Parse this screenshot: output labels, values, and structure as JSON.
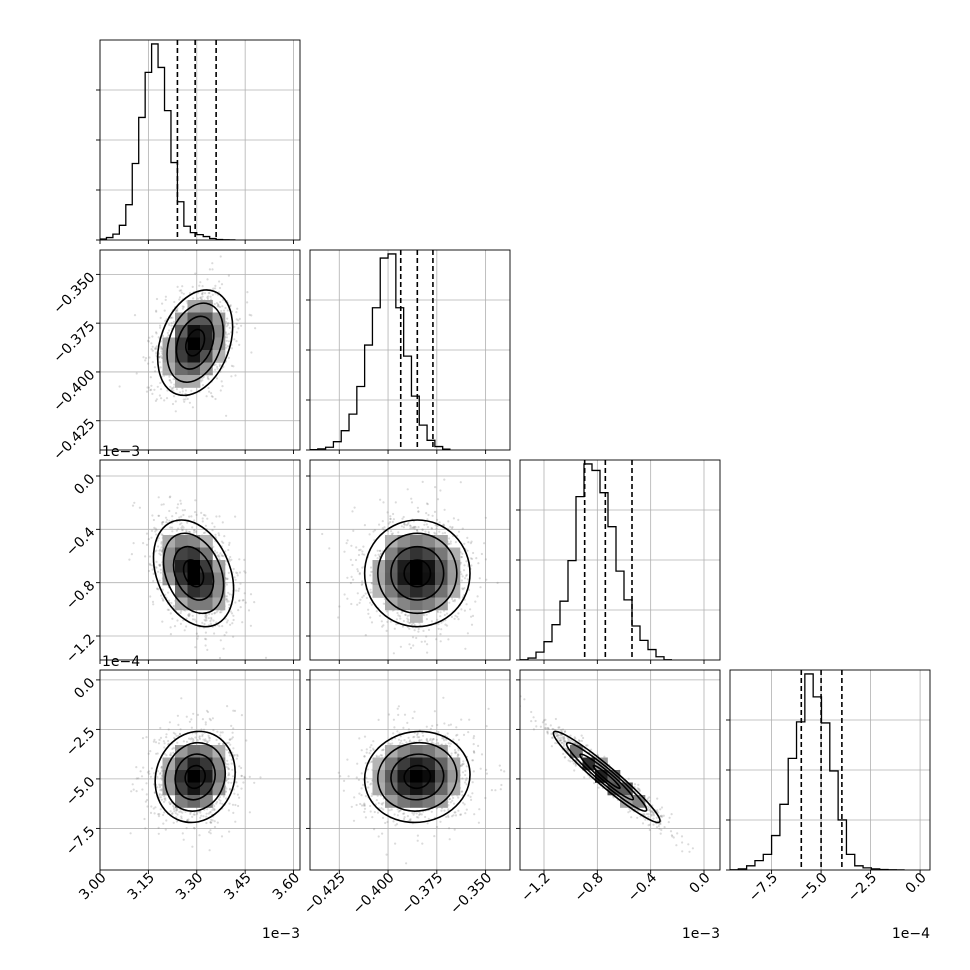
{
  "chart_data": {
    "type": "corner",
    "title": "",
    "parameters": [
      {
        "index": 0,
        "range": [
          3.0,
          3.62
        ],
        "ticks": [
          3.0,
          3.15,
          3.3,
          3.45,
          3.6
        ],
        "tick_labels": [
          "3.00",
          "3.15",
          "3.30",
          "3.45",
          "3.60"
        ],
        "offset_label": "1e−3",
        "quantiles": [
          3.24,
          3.295,
          3.36
        ]
      },
      {
        "index": 1,
        "range": [
          -0.44,
          -0.3375
        ],
        "ticks": [
          -0.425,
          -0.4,
          -0.375,
          -0.35
        ],
        "tick_labels": [
          "−0.425",
          "−0.400",
          "−0.375",
          "−0.350"
        ],
        "offset_label": "",
        "quantiles": [
          -0.3935,
          -0.385,
          -0.377
        ]
      },
      {
        "index": 2,
        "range": [
          -1.38,
          0.12
        ],
        "ticks": [
          -1.2,
          -0.8,
          -0.4,
          0.0
        ],
        "tick_labels": [
          "−1.2",
          "−0.8",
          "−0.4",
          "0.0"
        ],
        "offset_label": "1e−3",
        "quantiles": [
          -0.895,
          -0.74,
          -0.54
        ]
      },
      {
        "index": 3,
        "range": [
          -9.6,
          0.5
        ],
        "ticks": [
          -7.5,
          -5.0,
          -2.5,
          0.0
        ],
        "tick_labels": [
          "−7.5",
          "−5.0",
          "−2.5",
          "0.0"
        ],
        "offset_label": "1e−4",
        "quantiles": [
          -6.0,
          -5.0,
          -3.95
        ]
      }
    ],
    "histograms": [
      {
        "param": 0,
        "bin_start": 3.0,
        "bin_width": 0.02,
        "counts": [
          0.1,
          0.25,
          0.6,
          1.5,
          3.6,
          7.8,
          12.5,
          17.1,
          20.0,
          17.6,
          13.2,
          7.9,
          3.9,
          1.4,
          0.75,
          0.55,
          0.35,
          0.15,
          0.05,
          0.02,
          0.01
        ]
      },
      {
        "param": 1,
        "bin_start": -0.44,
        "bin_width": 0.004,
        "counts": [
          0.03,
          0.08,
          0.2,
          0.6,
          1.4,
          2.6,
          4.6,
          7.6,
          10.3,
          13.9,
          14.2,
          10.3,
          6.8,
          3.9,
          1.8,
          0.7,
          0.25,
          0.06
        ]
      },
      {
        "param": 2,
        "bin_start": -1.38,
        "bin_width": 0.06,
        "counts": [
          0.02,
          0.15,
          0.6,
          1.4,
          2.7,
          4.5,
          7.6,
          12.5,
          15.0,
          14.5,
          12.8,
          10.2,
          6.8,
          4.6,
          2.6,
          1.5,
          0.8,
          0.25,
          0.02
        ]
      },
      {
        "param": 3,
        "bin_start": -9.6,
        "bin_width": 0.42,
        "counts": [
          0.02,
          0.1,
          0.4,
          0.9,
          1.5,
          3.3,
          6.3,
          10.7,
          14.2,
          18.8,
          16.6,
          14.1,
          9.5,
          4.8,
          1.5,
          0.4,
          0.2,
          0.1,
          0.04,
          0.02,
          0.01
        ]
      }
    ],
    "pairs": [
      {
        "x": 0,
        "y": 1,
        "mean": [
          3.295,
          -0.385
        ],
        "std": [
          0.058,
          0.0135
        ],
        "corr": 0.3
      },
      {
        "x": 0,
        "y": 2,
        "mean": [
          3.29,
          -0.73
        ],
        "std": [
          0.062,
          0.2
        ],
        "corr": -0.3
      },
      {
        "x": 1,
        "y": 2,
        "mean": [
          -0.385,
          -0.73
        ],
        "std": [
          0.0135,
          0.2
        ],
        "corr": 0.0
      },
      {
        "x": 0,
        "y": 3,
        "mean": [
          3.295,
          -4.9
        ],
        "std": [
          0.062,
          1.15
        ],
        "corr": 0.1
      },
      {
        "x": 1,
        "y": 3,
        "mean": [
          -0.385,
          -4.9
        ],
        "std": [
          0.0135,
          1.15
        ],
        "corr": 0.05
      },
      {
        "x": 2,
        "y": 3,
        "mean": [
          -0.73,
          -4.9
        ],
        "std": [
          0.2,
          1.15
        ],
        "corr": -0.96
      }
    ],
    "contour_levels_sigma": [
      0.5,
      1.0,
      1.5,
      2.0
    ],
    "grid": true,
    "colors": {
      "line": "#000000",
      "grid": "#b0b0b0",
      "points": "#7f7f7f"
    }
  }
}
